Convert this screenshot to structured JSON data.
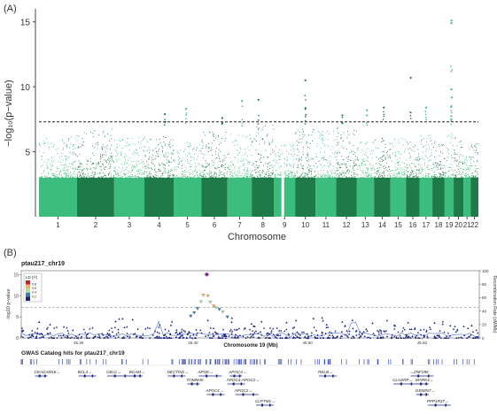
{
  "panel_a": {
    "label": "(A)",
    "ylabel": "−log₁₀(p−value)",
    "xlabel": "Chromosome",
    "y_ticks": [
      5,
      10,
      15
    ],
    "threshold": 7.3,
    "colors": {
      "light": "#3dbd7d",
      "dark": "#1e7a48"
    }
  },
  "panel_b": {
    "label": "(B)",
    "title": "ptau217_chr19",
    "ylabel_left": "-log10 p-value",
    "ylabel_right": "Recombination Rate (cM/Mb)",
    "xlabel": "Chromosome 19 (Mb)",
    "x_ticks": [
      "45.30",
      "45.40",
      "45.50",
      "45.60"
    ],
    "y_ticks": [
      "0",
      "5",
      "10",
      "15"
    ],
    "y_ticks_right": [
      "0",
      "20",
      "40",
      "60",
      "80",
      "100"
    ],
    "legend_title": "LD (r²)",
    "legend_labels": [
      "0.8",
      "0.6",
      "0.4",
      "0.2"
    ],
    "legend_colors": [
      "#d7191c",
      "#fdae61",
      "#abdda4",
      "#2b83ba",
      "#1a237e"
    ],
    "catalog_title": "GWAS Catalog hits for ptau217_chr19",
    "genes": [
      "CEACAM16→",
      "BCL3→",
      "CBLC→",
      "BCAM→",
      "NECTIN2→",
      "APOE→",
      "APOC4→",
      "RELB→",
      "←ZNF296",
      "TOMM40",
      "APOC4-APOC2→",
      "CLASRP→",
      "MARK4→",
      "APOC1→",
      "APOC2→",
      "GEMIN7→",
      "CLPTM1→",
      "PPP1R37→"
    ]
  },
  "chart_data": [
    {
      "type": "scatter",
      "subtype": "manhattan",
      "categories": [
        "1",
        "2",
        "3",
        "4",
        "5",
        "6",
        "7",
        "8",
        "9",
        "10",
        "11",
        "12",
        "13",
        "14",
        "15",
        "16",
        "17",
        "18",
        "19",
        "20",
        "21",
        "22"
      ],
      "chrom_size_mb": [
        249,
        243,
        198,
        191,
        181,
        171,
        159,
        146,
        138,
        134,
        135,
        133,
        114,
        107,
        102,
        90,
        83,
        80,
        59,
        64,
        47,
        51
      ],
      "ylim": [
        0,
        16
      ],
      "threshold": 7.3,
      "xlabel": "Chromosome",
      "background_max_by_chrom": [
        6.3,
        6.8,
        6.2,
        6.3,
        5.8,
        6.6,
        6.4,
        7.3,
        5.6,
        6.9,
        6.6,
        6.9,
        5.8,
        6.2,
        6.1,
        5.9,
        6.5,
        5.9,
        6.6,
        6.1,
        5.8,
        5.9
      ],
      "peaks": [
        {
          "chrom": "4",
          "pos": 0.7,
          "p": 7.9
        },
        {
          "chrom": "5",
          "pos": 0.45,
          "p": 8.3
        },
        {
          "chrom": "6",
          "pos": 0.8,
          "p": 7.6
        },
        {
          "chrom": "7",
          "pos": 0.6,
          "p": 8.9
        },
        {
          "chrom": "8",
          "pos": 0.3,
          "p": 9.0
        },
        {
          "chrom": "10",
          "pos": 0.5,
          "p": 10.5
        },
        {
          "chrom": "10",
          "pos": 0.5,
          "p": 8.3
        },
        {
          "chrom": "12",
          "pos": 0.3,
          "p": 7.8
        },
        {
          "chrom": "13",
          "pos": 0.6,
          "p": 8.2
        },
        {
          "chrom": "14",
          "pos": 0.6,
          "p": 8.4
        },
        {
          "chrom": "16",
          "pos": 0.35,
          "p": 10.7
        },
        {
          "chrom": "17",
          "pos": 0.5,
          "p": 8.4
        },
        {
          "chrom": "19",
          "pos": 0.75,
          "p": 15.1
        },
        {
          "chrom": "19",
          "pos": 0.75,
          "p": 14.9
        },
        {
          "chrom": "19",
          "pos": 0.75,
          "p": 9.8
        },
        {
          "chrom": "19",
          "pos": 0.75,
          "p": 8.5
        }
      ]
    },
    {
      "type": "scatter",
      "subtype": "locuszoom",
      "title": "ptau217_chr19",
      "xlabel": "Chromosome 19 (Mb)",
      "xlim": [
        45.25,
        45.65
      ],
      "ylim": [
        0,
        16
      ],
      "ylim_right": [
        0,
        100
      ],
      "threshold": 7.3,
      "lead_snp": {
        "x": 45.412,
        "p": 15.1
      },
      "top_hits": [
        {
          "x": 45.409,
          "p": 10.2,
          "ld": 0.6
        },
        {
          "x": 45.413,
          "p": 10.0,
          "ld": 0.6
        },
        {
          "x": 45.407,
          "p": 8.6,
          "ld": 0.4
        },
        {
          "x": 45.415,
          "p": 8.5,
          "ld": 0.4
        },
        {
          "x": 45.418,
          "p": 7.6,
          "ld": 0.6
        },
        {
          "x": 45.42,
          "p": 7.2,
          "ld": 0.4
        },
        {
          "x": 45.404,
          "p": 7.0,
          "ld": 0.2
        },
        {
          "x": 45.423,
          "p": 6.8,
          "ld": 0.2
        },
        {
          "x": 45.401,
          "p": 6.0,
          "ld": 0.2
        },
        {
          "x": 45.426,
          "p": 6.2,
          "ld": 0.4
        },
        {
          "x": 45.398,
          "p": 5.2,
          "ld": 0.2
        },
        {
          "x": 45.43,
          "p": 5.0,
          "ld": 0.2
        }
      ]
    }
  ]
}
